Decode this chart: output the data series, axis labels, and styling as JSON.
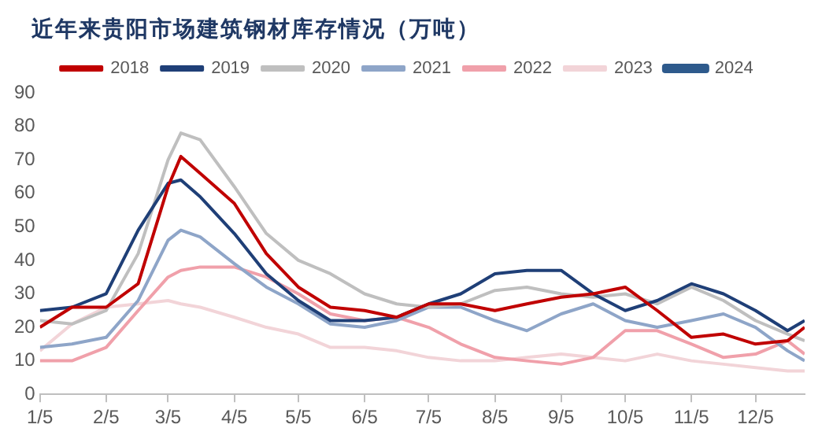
{
  "chart_data": {
    "type": "line",
    "title": "近年来贵阳市场建筑钢材库存情况（万吨）",
    "x": [
      "--01-05",
      "--01-20",
      "--02-05",
      "--02-20",
      "--03-05",
      "--03-11",
      "--03-20",
      "--04-05",
      "--04-20",
      "--05-05",
      "--05-20",
      "--06-05",
      "--06-20",
      "--07-05",
      "--07-20",
      "--08-05",
      "--08-20",
      "--09-05",
      "--09-20",
      "--10-05",
      "--10-20",
      "--11-05",
      "--11-20",
      "--12-05",
      "--12-20",
      "--12-28"
    ],
    "series": [
      {
        "name": "2018",
        "color": "#c00000",
        "values": [
          20,
          26,
          26,
          33,
          62,
          71,
          66,
          57,
          42,
          32,
          26,
          25,
          23,
          27,
          27,
          25,
          27,
          29,
          30,
          32,
          25,
          17,
          18,
          15,
          16,
          20
        ]
      },
      {
        "name": "2019",
        "color": "#1f3f77",
        "values": [
          25,
          26,
          30,
          49,
          63,
          64,
          59,
          48,
          36,
          28,
          22,
          22,
          23,
          27,
          30,
          36,
          37,
          37,
          30,
          25,
          28,
          33,
          30,
          25,
          19,
          22
        ]
      },
      {
        "name": "2020",
        "color": "#bfbfbf",
        "values": [
          22,
          21,
          25,
          42,
          70,
          78,
          76,
          62,
          48,
          40,
          36,
          30,
          27,
          26,
          27,
          31,
          32,
          30,
          29,
          30,
          27,
          32,
          28,
          22,
          18,
          16
        ]
      },
      {
        "name": "2021",
        "color": "#8ea5c8",
        "values": [
          14,
          15,
          17,
          28,
          46,
          49,
          47,
          39,
          32,
          27,
          21,
          20,
          22,
          26,
          26,
          22,
          19,
          24,
          27,
          22,
          20,
          22,
          24,
          20,
          13,
          10
        ]
      },
      {
        "name": "2022",
        "color": "#f0a0aa",
        "values": [
          10,
          10,
          14,
          25,
          35,
          37,
          38,
          38,
          35,
          30,
          24,
          22,
          23,
          20,
          15,
          11,
          10,
          9,
          11,
          19,
          19,
          15,
          11,
          12,
          16,
          12
        ]
      },
      {
        "name": "2023",
        "color": "#f2d4d8",
        "values": [
          13,
          21,
          26,
          27,
          28,
          27,
          26,
          23,
          20,
          18,
          14,
          14,
          13,
          11,
          10,
          10,
          11,
          12,
          11,
          10,
          12,
          10,
          9,
          8,
          7,
          7
        ]
      },
      {
        "name": "2024",
        "color": "#2e5a8c",
        "values": [
          null,
          null,
          null,
          null,
          null,
          null,
          null,
          null,
          null,
          null,
          null,
          null,
          null,
          null,
          null,
          null,
          null,
          null,
          null,
          null,
          null,
          null,
          null,
          null,
          null,
          null
        ]
      }
    ],
    "xlim": [
      "--01-05",
      "--12-28"
    ],
    "xticks": [
      {
        "value": "--01-05",
        "label": "1/5"
      },
      {
        "value": "--02-05",
        "label": "2/5"
      },
      {
        "value": "--03-05",
        "label": "3/5"
      },
      {
        "value": "--04-05",
        "label": "4/5"
      },
      {
        "value": "--05-05",
        "label": "5/5"
      },
      {
        "value": "--06-05",
        "label": "6/5"
      },
      {
        "value": "--07-05",
        "label": "7/5"
      },
      {
        "value": "--08-05",
        "label": "8/5"
      },
      {
        "value": "--09-05",
        "label": "9/5"
      },
      {
        "value": "--10-05",
        "label": "10/5"
      },
      {
        "value": "--11-05",
        "label": "11/5"
      },
      {
        "value": "--12-05",
        "label": "12/5"
      }
    ],
    "ylim": [
      0,
      90
    ],
    "yticks": [
      0,
      10,
      20,
      30,
      40,
      50,
      60,
      70,
      80,
      90
    ],
    "grid": false,
    "legend": "top",
    "marker": "none",
    "line_style": "solid"
  }
}
